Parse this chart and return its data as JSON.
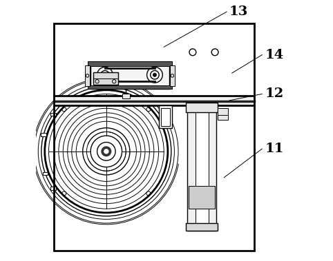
{
  "background_color": "#ffffff",
  "line_color": "#000000",
  "label_color": "#000000",
  "fig_width": 4.82,
  "fig_height": 3.79,
  "dpi": 100,
  "label_fontsize": 14,
  "border": [
    0.07,
    0.04,
    0.835,
    0.91
  ]
}
